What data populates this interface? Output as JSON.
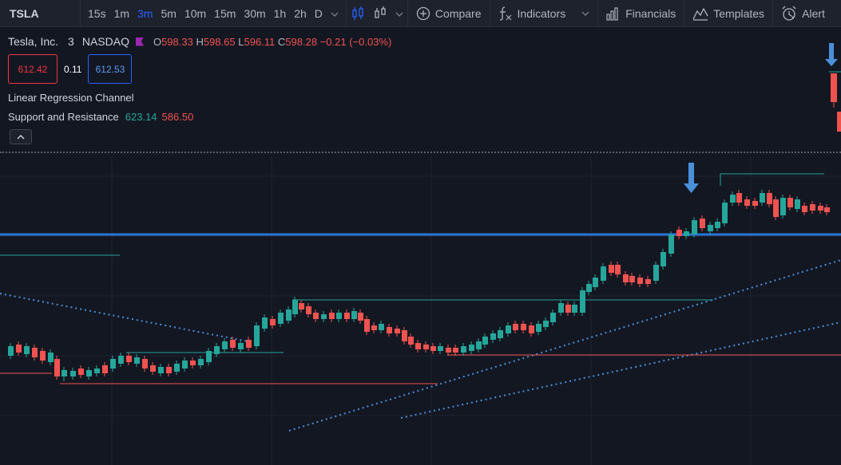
{
  "toolbar": {
    "symbol": "TSLA",
    "intervals": [
      "15s",
      "1m",
      "3m",
      "5m",
      "10m",
      "15m",
      "30m",
      "1h",
      "2h",
      "D"
    ],
    "active_interval": "3m",
    "compare_label": "Compare",
    "indicators_label": "Indicators",
    "financials_label": "Financials",
    "templates_label": "Templates",
    "alert_label": "Alert"
  },
  "legend": {
    "title": "Tesla, Inc.",
    "interval": "3",
    "exchange": "NASDAQ",
    "o_key": "O",
    "o_val": "598.33",
    "h_key": "H",
    "h_val": "598.65",
    "l_key": "L",
    "l_val": "596.11",
    "c_key": "C",
    "c_val": "598.28",
    "change": "−0.21 (−0.03%)",
    "value_left": "612.42",
    "value_mid": "0.11",
    "value_right": "612.53",
    "indicator_1": "Linear Regression Channel",
    "indicator_2": "Support and Resistance",
    "indicator_2_val1": "623.14",
    "indicator_2_val2": "586.50"
  },
  "colors": {
    "up": "#26a69a",
    "down": "#ef5350",
    "accent": "#2962ff",
    "arrow": "#4a90d9"
  },
  "icons": [
    "candles-icon",
    "bars-icon",
    "plus-circle-icon",
    "fx-icon",
    "financials-icon",
    "templates-icon",
    "alarm-icon",
    "chevron-down-icon",
    "chevron-up-icon",
    "arrow-down-icon"
  ]
}
